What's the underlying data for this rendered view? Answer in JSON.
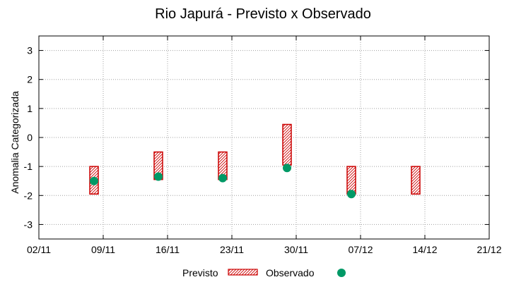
{
  "colors": {
    "forecast_stroke": "#cc0000",
    "observed_fill": "#009966",
    "grid": "#a0a0a0",
    "axis": "#000000"
  },
  "legend": {
    "forecast_label": "Previsto",
    "observed_label": "Observado"
  },
  "chart_data": {
    "type": "scatter",
    "title": "Rio Japurá - Previsto x Observado",
    "xlabel": "",
    "ylabel": "Anomalia Categorizada",
    "x_tick_labels": [
      "02/11",
      "09/11",
      "16/11",
      "23/11",
      "30/11",
      "07/12",
      "14/12",
      "21/12"
    ],
    "xlim": [
      0,
      49
    ],
    "y_ticks": [
      -3,
      -2,
      -1,
      0,
      1,
      2,
      3
    ],
    "y_tick_labels": [
      "-3",
      "-2",
      "-1",
      "0",
      "1",
      "2",
      "3"
    ],
    "ylim": [
      -3.5,
      3.5
    ],
    "grid": true,
    "series": [
      {
        "name": "Previsto",
        "kind": "range-bar",
        "points": [
          {
            "x": 6,
            "low": -1.95,
            "high": -1.0
          },
          {
            "x": 13,
            "low": -1.45,
            "high": -0.5
          },
          {
            "x": 20,
            "low": -1.45,
            "high": -0.5
          },
          {
            "x": 27,
            "low": -0.95,
            "high": 0.45
          },
          {
            "x": 34,
            "low": -1.95,
            "high": -1.0
          },
          {
            "x": 41,
            "low": -1.95,
            "high": -1.0
          }
        ]
      },
      {
        "name": "Observado",
        "kind": "point",
        "points": [
          {
            "x": 6,
            "y": -1.5
          },
          {
            "x": 13,
            "y": -1.35
          },
          {
            "x": 20,
            "y": -1.4
          },
          {
            "x": 27,
            "y": -1.05
          },
          {
            "x": 34,
            "y": -1.95
          }
        ]
      }
    ]
  }
}
